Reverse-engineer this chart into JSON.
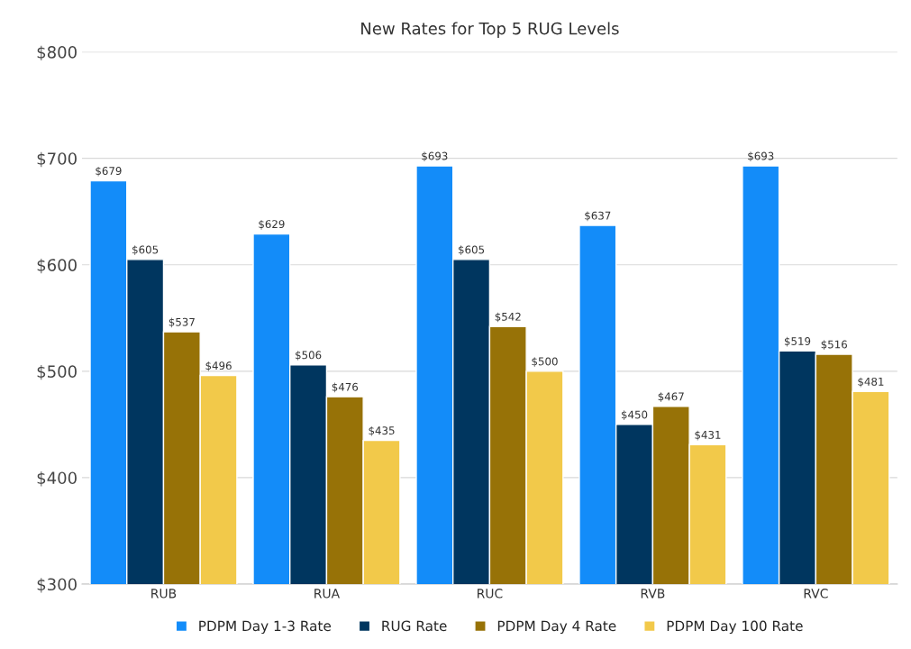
{
  "chart_data": {
    "type": "bar",
    "title": "New Rates for Top 5 RUG Levels",
    "categories": [
      "RUB",
      "RUA",
      "RUC",
      "RVB",
      "RVC"
    ],
    "series": [
      {
        "name": "PDPM Day 1-3 Rate",
        "color": "#138cf9",
        "values": [
          679,
          629,
          693,
          637,
          693
        ],
        "value_labels": [
          "$679",
          "$629",
          "$693",
          "$637",
          "$693"
        ]
      },
      {
        "name": "RUG Rate",
        "color": "#00365f",
        "values": [
          605,
          506,
          605,
          450,
          519
        ],
        "value_labels": [
          "$605",
          "$506",
          "$605",
          "$450",
          "$519"
        ]
      },
      {
        "name": "PDPM Day 4 Rate",
        "color": "#977207",
        "values": [
          537,
          476,
          542,
          467,
          516
        ],
        "value_labels": [
          "$537",
          "$476",
          "$542",
          "$467",
          "$516"
        ]
      },
      {
        "name": "PDPM Day 100 Rate",
        "color": "#f2c94a",
        "values": [
          496,
          435,
          500,
          431,
          481
        ],
        "value_labels": [
          "$496",
          "$435",
          "$500",
          "$431",
          "$481"
        ]
      }
    ],
    "ylim": [
      300,
      800
    ],
    "yticks": [
      {
        "value": 300,
        "label": "$300"
      },
      {
        "value": 400,
        "label": "$400"
      },
      {
        "value": 500,
        "label": "$500"
      },
      {
        "value": 600,
        "label": "$600"
      },
      {
        "value": 700,
        "label": "$700"
      },
      {
        "value": 800,
        "label": "$800"
      }
    ],
    "grid": "y",
    "legend": "bottom"
  }
}
